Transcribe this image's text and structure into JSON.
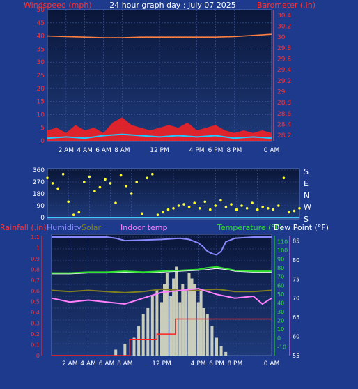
{
  "title": "24 hour graph day : July 07 2025",
  "colors": {
    "background": "#1e3a8c",
    "plot_bg_top": "#0a1638",
    "plot_bg_bottom": "#1e3a7a",
    "grid": "#3f5aa0",
    "wind_gust": "#ff2020",
    "wind_avg": "#20c8ff",
    "barometer": "#ff8040",
    "wind_dir": "#ffff30",
    "rain": "#ff2020",
    "humidity": "#8888ff",
    "solar": "#808020",
    "indoor": "#ff80ff",
    "temperature": "#30e030",
    "dew_point": "#ffffff",
    "axis_red": "#ff3030",
    "axis_green": "#30e030",
    "axis_pink": "#ff80ff"
  },
  "chart_data": [
    {
      "type": "line",
      "name": "wind-barometer",
      "left_axis_label": "Windspeed (mph)",
      "right_axis_label": "Barometer (.in)",
      "left_ticks": [
        "50",
        "45",
        "40",
        "35",
        "30",
        "25",
        "20",
        "15",
        "10",
        "5",
        "0"
      ],
      "right_ticks": [
        "30.4",
        "30.2",
        "30",
        "29.8",
        "29.6",
        "29.4",
        "29.2",
        "29",
        "28.8",
        "28.6",
        "28.4",
        "28.2"
      ],
      "ylim_left": [
        0,
        50
      ],
      "ylim_right": [
        28.1,
        30.5
      ],
      "x_ticks": [
        "2 AM",
        "4 AM",
        "6 AM",
        "8 AM",
        "12 PM",
        "4 PM",
        "6 PM",
        "8 PM",
        "0 AM"
      ],
      "x_tick_hours": [
        2,
        4,
        6,
        8,
        12,
        16,
        18,
        20,
        24
      ],
      "xlim": [
        0,
        24
      ],
      "barometer": {
        "x": [
          0,
          2,
          4,
          6,
          8,
          10,
          12,
          14,
          16,
          18,
          20,
          22,
          24
        ],
        "y": [
          30.02,
          30.01,
          30.0,
          29.99,
          29.99,
          30.0,
          30.0,
          30.0,
          30.0,
          30.0,
          30.01,
          30.03,
          30.05
        ]
      },
      "wind_gust": {
        "x": [
          0,
          1,
          2,
          3,
          4,
          5,
          6,
          7,
          8,
          9,
          10,
          11,
          12,
          13,
          14,
          15,
          16,
          17,
          18,
          19,
          20,
          21,
          22,
          23,
          24
        ],
        "y": [
          4,
          5,
          3,
          6,
          4,
          5,
          3,
          7,
          9,
          6,
          5,
          4,
          5,
          6,
          5,
          7,
          4,
          5,
          6,
          4,
          3,
          4,
          3,
          4,
          3
        ]
      },
      "wind_avg": {
        "x": [
          0,
          2,
          4,
          6,
          8,
          10,
          12,
          14,
          16,
          18,
          20,
          22,
          24
        ],
        "y": [
          1,
          1.5,
          1,
          2,
          2.5,
          2,
          1.5,
          2,
          1.5,
          2,
          1,
          1.5,
          1
        ]
      }
    },
    {
      "type": "scatter",
      "name": "wind-direction",
      "left_ticks": [
        "360",
        "270",
        "180",
        "90",
        "0"
      ],
      "right_labels": [
        "S",
        "E",
        "N",
        "W",
        "S"
      ],
      "ylim": [
        0,
        360
      ],
      "points": {
        "x": [
          0,
          0.5,
          1,
          1.5,
          2,
          2.5,
          3,
          3.5,
          4,
          4.5,
          5,
          5.5,
          6,
          6.5,
          7,
          7.5,
          8,
          8.5,
          9,
          9.5,
          10,
          10.5,
          11,
          11.5,
          12,
          12.5,
          13,
          13.5,
          14,
          14.5,
          15,
          15.5,
          16,
          16.5,
          17,
          17.5,
          18,
          18.5,
          19,
          19.5,
          20,
          20.5,
          21,
          21.5,
          22,
          22.5,
          23,
          23.5,
          24
        ],
        "y": [
          300,
          260,
          220,
          330,
          120,
          20,
          40,
          270,
          310,
          200,
          230,
          290,
          260,
          110,
          320,
          240,
          180,
          270,
          30,
          300,
          330,
          20,
          40,
          60,
          70,
          90,
          100,
          80,
          110,
          70,
          120,
          60,
          90,
          130,
          80,
          100,
          60,
          90,
          70,
          110,
          60,
          80,
          70,
          60,
          90,
          300,
          40,
          50,
          70
        ]
      }
    },
    {
      "type": "line",
      "name": "rain-temp",
      "series_labels": [
        "Rainfall (.in)",
        "Humidity",
        "Solar",
        "Indoor temp",
        "Temperature (°F)",
        "Dew Point (°F)"
      ],
      "rain_ticks": [
        "1.1",
        "1",
        "0.9",
        "0.8",
        "0.7",
        "0.6",
        "0.5",
        "0.4",
        "0.3",
        "0.2",
        "0.1",
        "0"
      ],
      "rain_ylim": [
        0,
        1.1
      ],
      "humidity_ticks": [
        "100",
        "90",
        "80",
        "70",
        "60",
        "50",
        "40",
        "30",
        "20",
        "10",
        "0"
      ],
      "humidity_ylim": [
        0,
        100
      ],
      "temp_ticks": [
        "110",
        "100",
        "90",
        "80",
        "70",
        "60",
        "50",
        "40",
        "30",
        "20",
        "10",
        "0",
        "-10"
      ],
      "temp_ylim": [
        -20,
        115
      ],
      "indoor_ticks": [
        "85",
        "80",
        "75",
        "70",
        "65",
        "60",
        "55"
      ],
      "indoor_ylim": [
        55,
        86
      ],
      "x_ticks": [
        "2 AM",
        "4 AM",
        "6 AM",
        "8 AM",
        "12 PM",
        "4 PM",
        "6 PM",
        "8 PM",
        "0 AM"
      ],
      "x_tick_hours": [
        2,
        4,
        6,
        8,
        12,
        16,
        18,
        20,
        24
      ],
      "xlim": [
        0,
        24
      ],
      "humidity": {
        "x": [
          0,
          2,
          4,
          6,
          7,
          8,
          12,
          14,
          15,
          16,
          16.5,
          17,
          17.5,
          18,
          18.5,
          19,
          20,
          22,
          24
        ],
        "y": [
          100,
          100,
          100,
          100,
          99,
          97,
          98,
          99,
          98,
          95,
          92,
          88,
          86,
          85,
          88,
          96,
          99,
          100,
          100
        ]
      },
      "temperature": {
        "x": [
          0,
          2,
          4,
          6,
          8,
          10,
          12,
          14,
          16,
          17,
          18,
          19,
          20,
          22,
          24
        ],
        "y": [
          74,
          74,
          75,
          75,
          76,
          75,
          76,
          77,
          78,
          80,
          81,
          79,
          77,
          76,
          76
        ]
      },
      "dew_point": {
        "x": [
          0,
          2,
          4,
          6,
          8,
          10,
          12,
          14,
          16,
          17,
          18,
          19,
          20,
          22,
          24
        ],
        "y": [
          73,
          73,
          74,
          74,
          75,
          74,
          75,
          76,
          77,
          78,
          79,
          78,
          76,
          75,
          75
        ]
      },
      "indoor": {
        "x": [
          0,
          2,
          4,
          6,
          8,
          10,
          12,
          14,
          16,
          18,
          20,
          22,
          23,
          24
        ],
        "y": [
          70,
          69,
          69.5,
          69,
          68.5,
          70,
          71.5,
          72,
          72.5,
          71,
          70,
          70.5,
          68.5,
          70
        ]
      },
      "solar": {
        "x": [
          0,
          2,
          4,
          6,
          8,
          10,
          12,
          14,
          16,
          18,
          20,
          22,
          24
        ],
        "y": [
          55,
          54,
          55,
          54,
          53,
          54,
          56,
          55,
          55,
          56,
          54,
          54,
          55
        ]
      },
      "rain": {
        "x": [
          0,
          8,
          8.5,
          11,
          11.5,
          13,
          13.5,
          18,
          18.5,
          24
        ],
        "y": [
          0,
          0,
          0.15,
          0.15,
          0.2,
          0.2,
          0.34,
          0.34,
          0.34,
          0.34
        ]
      },
      "solar_bars": {
        "x": [
          7,
          8,
          9,
          9.5,
          10,
          10.5,
          11,
          11.5,
          12,
          12.3,
          12.6,
          13,
          13.3,
          13.6,
          14,
          14.3,
          14.6,
          15,
          15.3,
          15.6,
          16,
          16.3,
          16.6,
          17,
          17.5,
          18,
          18.5,
          19
        ],
        "y": [
          5,
          10,
          15,
          25,
          35,
          40,
          50,
          55,
          45,
          60,
          70,
          50,
          65,
          75,
          45,
          60,
          55,
          70,
          65,
          60,
          45,
          55,
          40,
          35,
          25,
          15,
          8,
          3
        ]
      }
    }
  ]
}
